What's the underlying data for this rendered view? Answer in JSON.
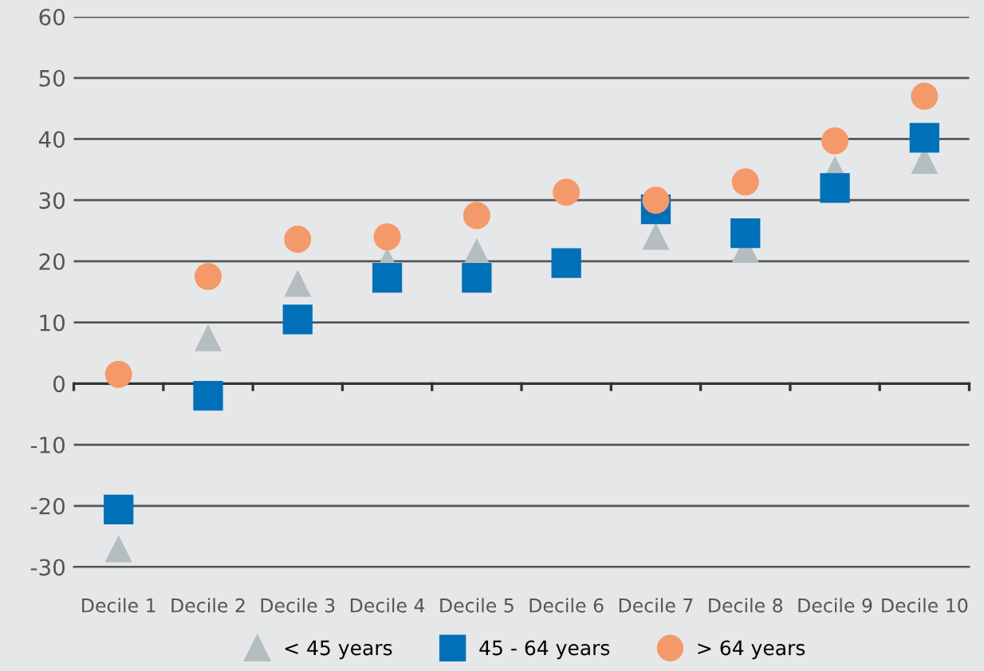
{
  "chart_data": {
    "type": "scatter",
    "categories": [
      "Decile 1",
      "Decile 2",
      "Decile 3",
      "Decile 4",
      "Decile 5",
      "Decile 6",
      "Decile 7",
      "Decile 8",
      "Decile 9",
      "Decile 10"
    ],
    "series": [
      {
        "name": "< 45 years",
        "color": "#b4bec1",
        "marker": "triangle",
        "values": [
          -27,
          7.5,
          16.4,
          20,
          21.6,
          null,
          24.1,
          22,
          35,
          36.5
        ]
      },
      {
        "name": "45 - 64 years",
        "color": "#0070b8",
        "marker": "square",
        "values": [
          -20.6,
          -2,
          10.5,
          17.3,
          17.3,
          19.7,
          28.5,
          24.6,
          32,
          40.2
        ]
      },
      {
        "name": "> 64 years",
        "color": "#f4996a",
        "marker": "circle",
        "values": [
          1.5,
          17.5,
          23.6,
          24,
          27.5,
          31.3,
          30,
          33,
          39.7,
          47
        ]
      }
    ],
    "ylim": [
      -30,
      60
    ],
    "yticks": [
      -30,
      -20,
      -10,
      0,
      10,
      20,
      30,
      40,
      50,
      60
    ],
    "grid": "y",
    "legend": "bottom"
  }
}
